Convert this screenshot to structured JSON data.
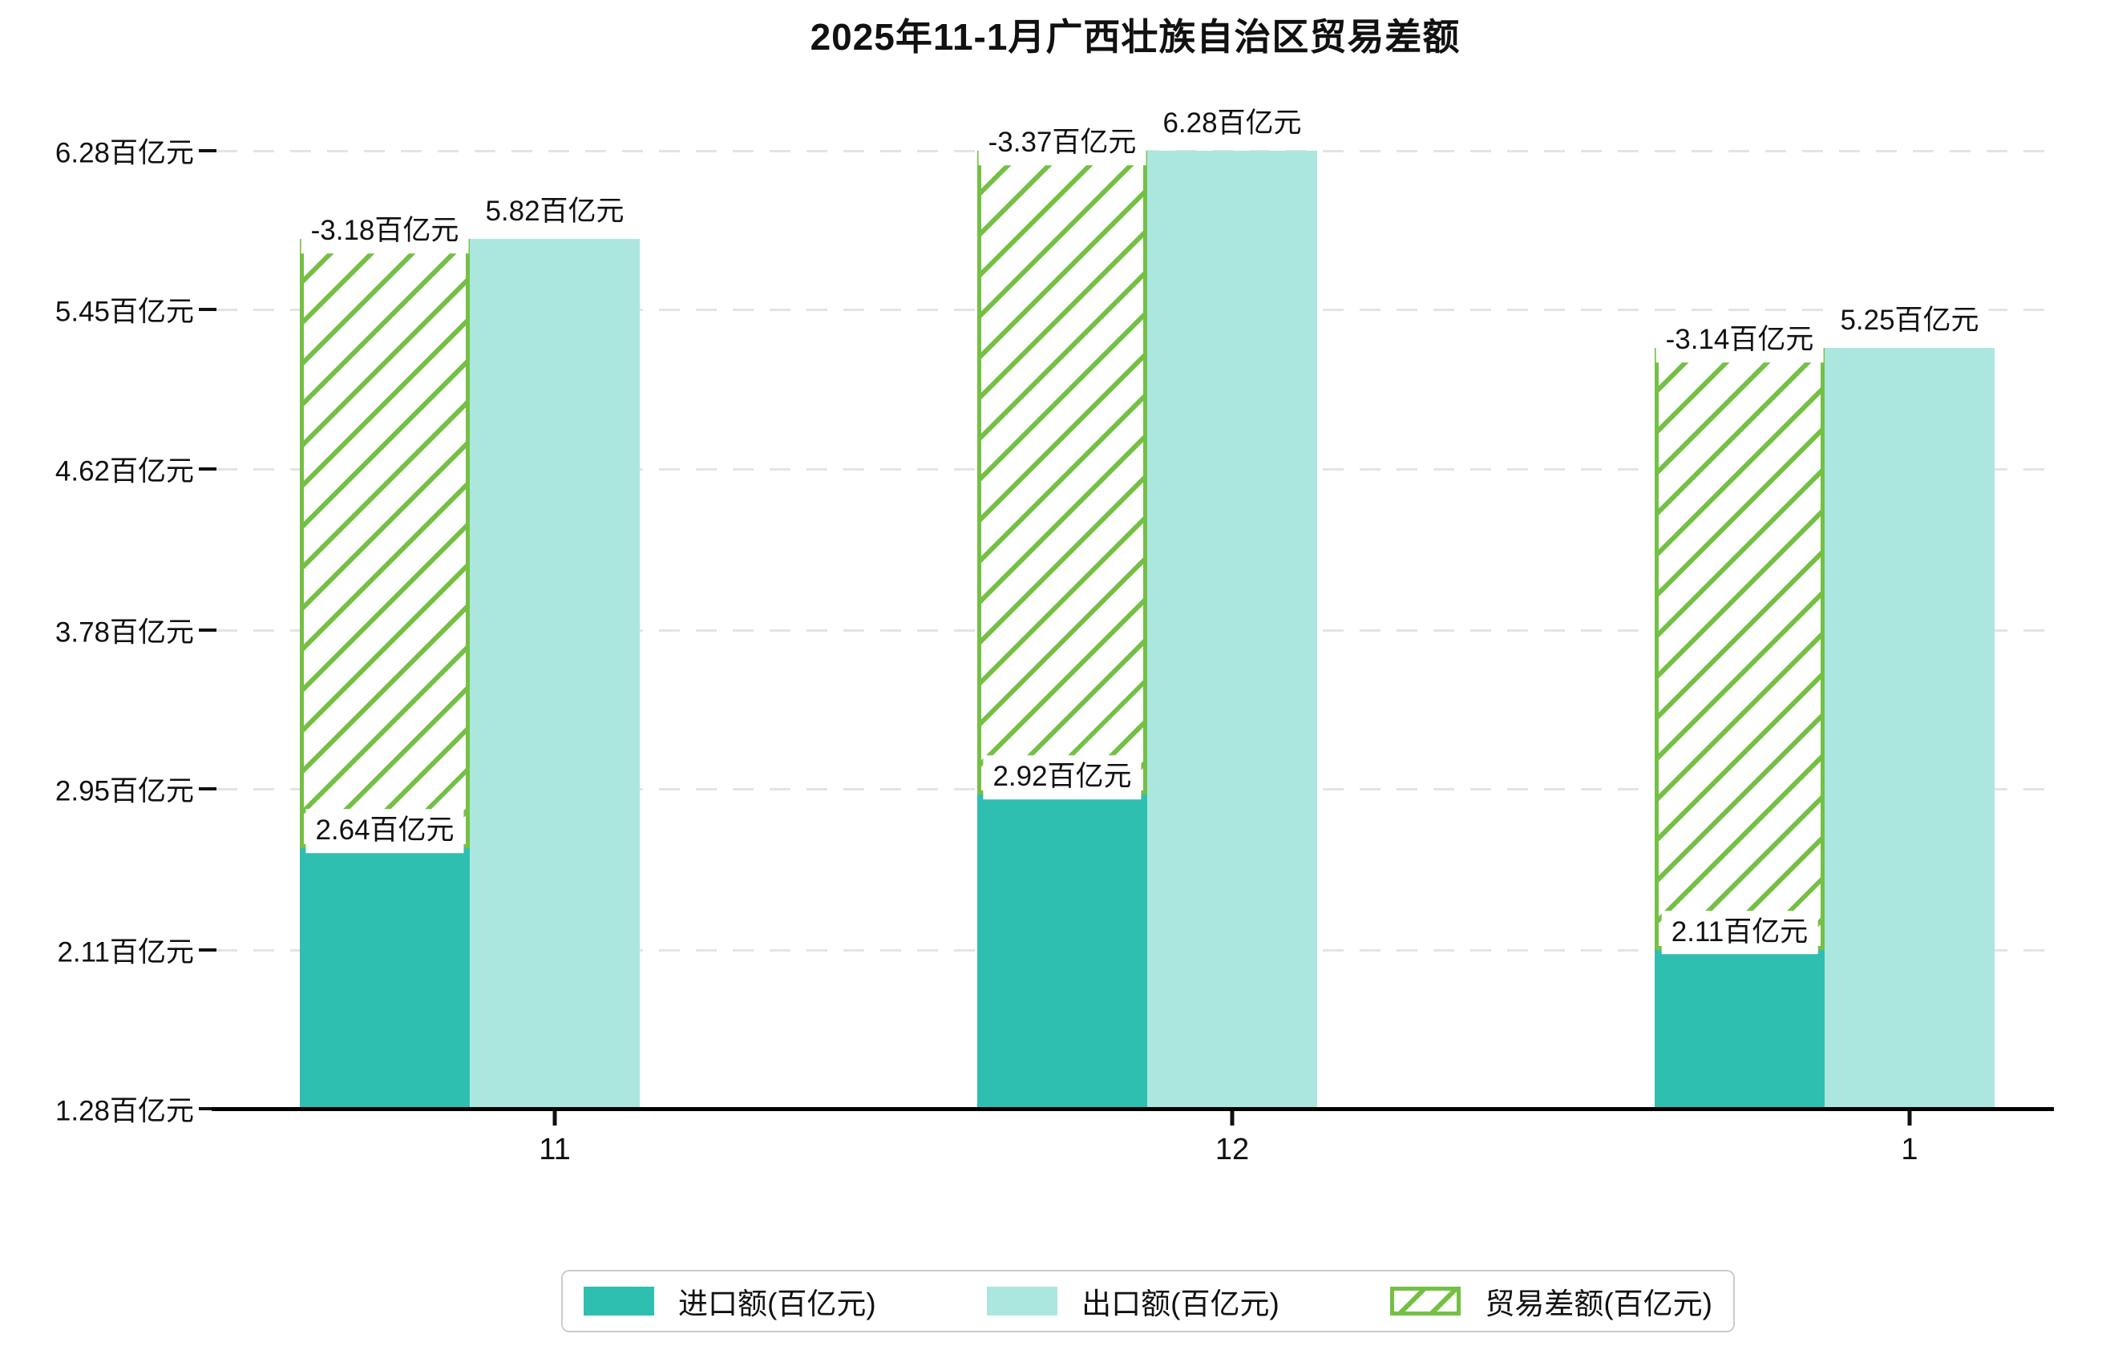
{
  "page": {
    "background": "#ffffff",
    "text_color": "#111111"
  },
  "chart_data": {
    "type": "bar",
    "title": "2025年11-1月广西壮族自治区贸易差额",
    "categories": [
      "11",
      "12",
      "1"
    ],
    "unit": "百亿元",
    "series": [
      {
        "key": "import",
        "name": "进口额(百亿元)",
        "style": "solid",
        "color": "#2fbfb1",
        "values": [
          2.64,
          2.92,
          2.11
        ],
        "data_labels": [
          "2.64百亿元",
          "2.92百亿元",
          "2.11百亿元"
        ]
      },
      {
        "key": "export",
        "name": "出口额(百亿元)",
        "style": "solid",
        "color": "#abe7df",
        "values": [
          5.82,
          6.28,
          5.25
        ],
        "data_labels": [
          "5.82百亿元",
          "6.28百亿元",
          "5.25百亿元"
        ]
      },
      {
        "key": "balance",
        "name": "贸易差额(百亿元)",
        "style": "hatched",
        "color": "#74c044",
        "values": [
          -3.18,
          -3.37,
          -3.14
        ],
        "data_labels": [
          "-3.18百亿元",
          "-3.37百亿元",
          "-3.14百亿元"
        ],
        "note": "hatched floating bar spanning from import value up to export value"
      }
    ],
    "y_axis": {
      "min": 1.28,
      "max": 6.28,
      "tick_values": [
        6.28,
        5.45,
        4.62,
        3.78,
        2.95,
        2.11,
        1.28
      ],
      "tick_labels": [
        "6.28百亿元",
        "5.45百亿元",
        "4.62百亿元",
        "3.78百亿元",
        "2.95百亿元",
        "2.11百亿元",
        "1.28百亿元"
      ]
    },
    "x_axis": {
      "tick_labels": [
        "11",
        "12",
        "1"
      ]
    },
    "grid": {
      "horizontal": true,
      "style": "dashed",
      "color": "#e4e4e4"
    },
    "legend": {
      "position": "bottom",
      "border_color": "#cccccc"
    }
  }
}
